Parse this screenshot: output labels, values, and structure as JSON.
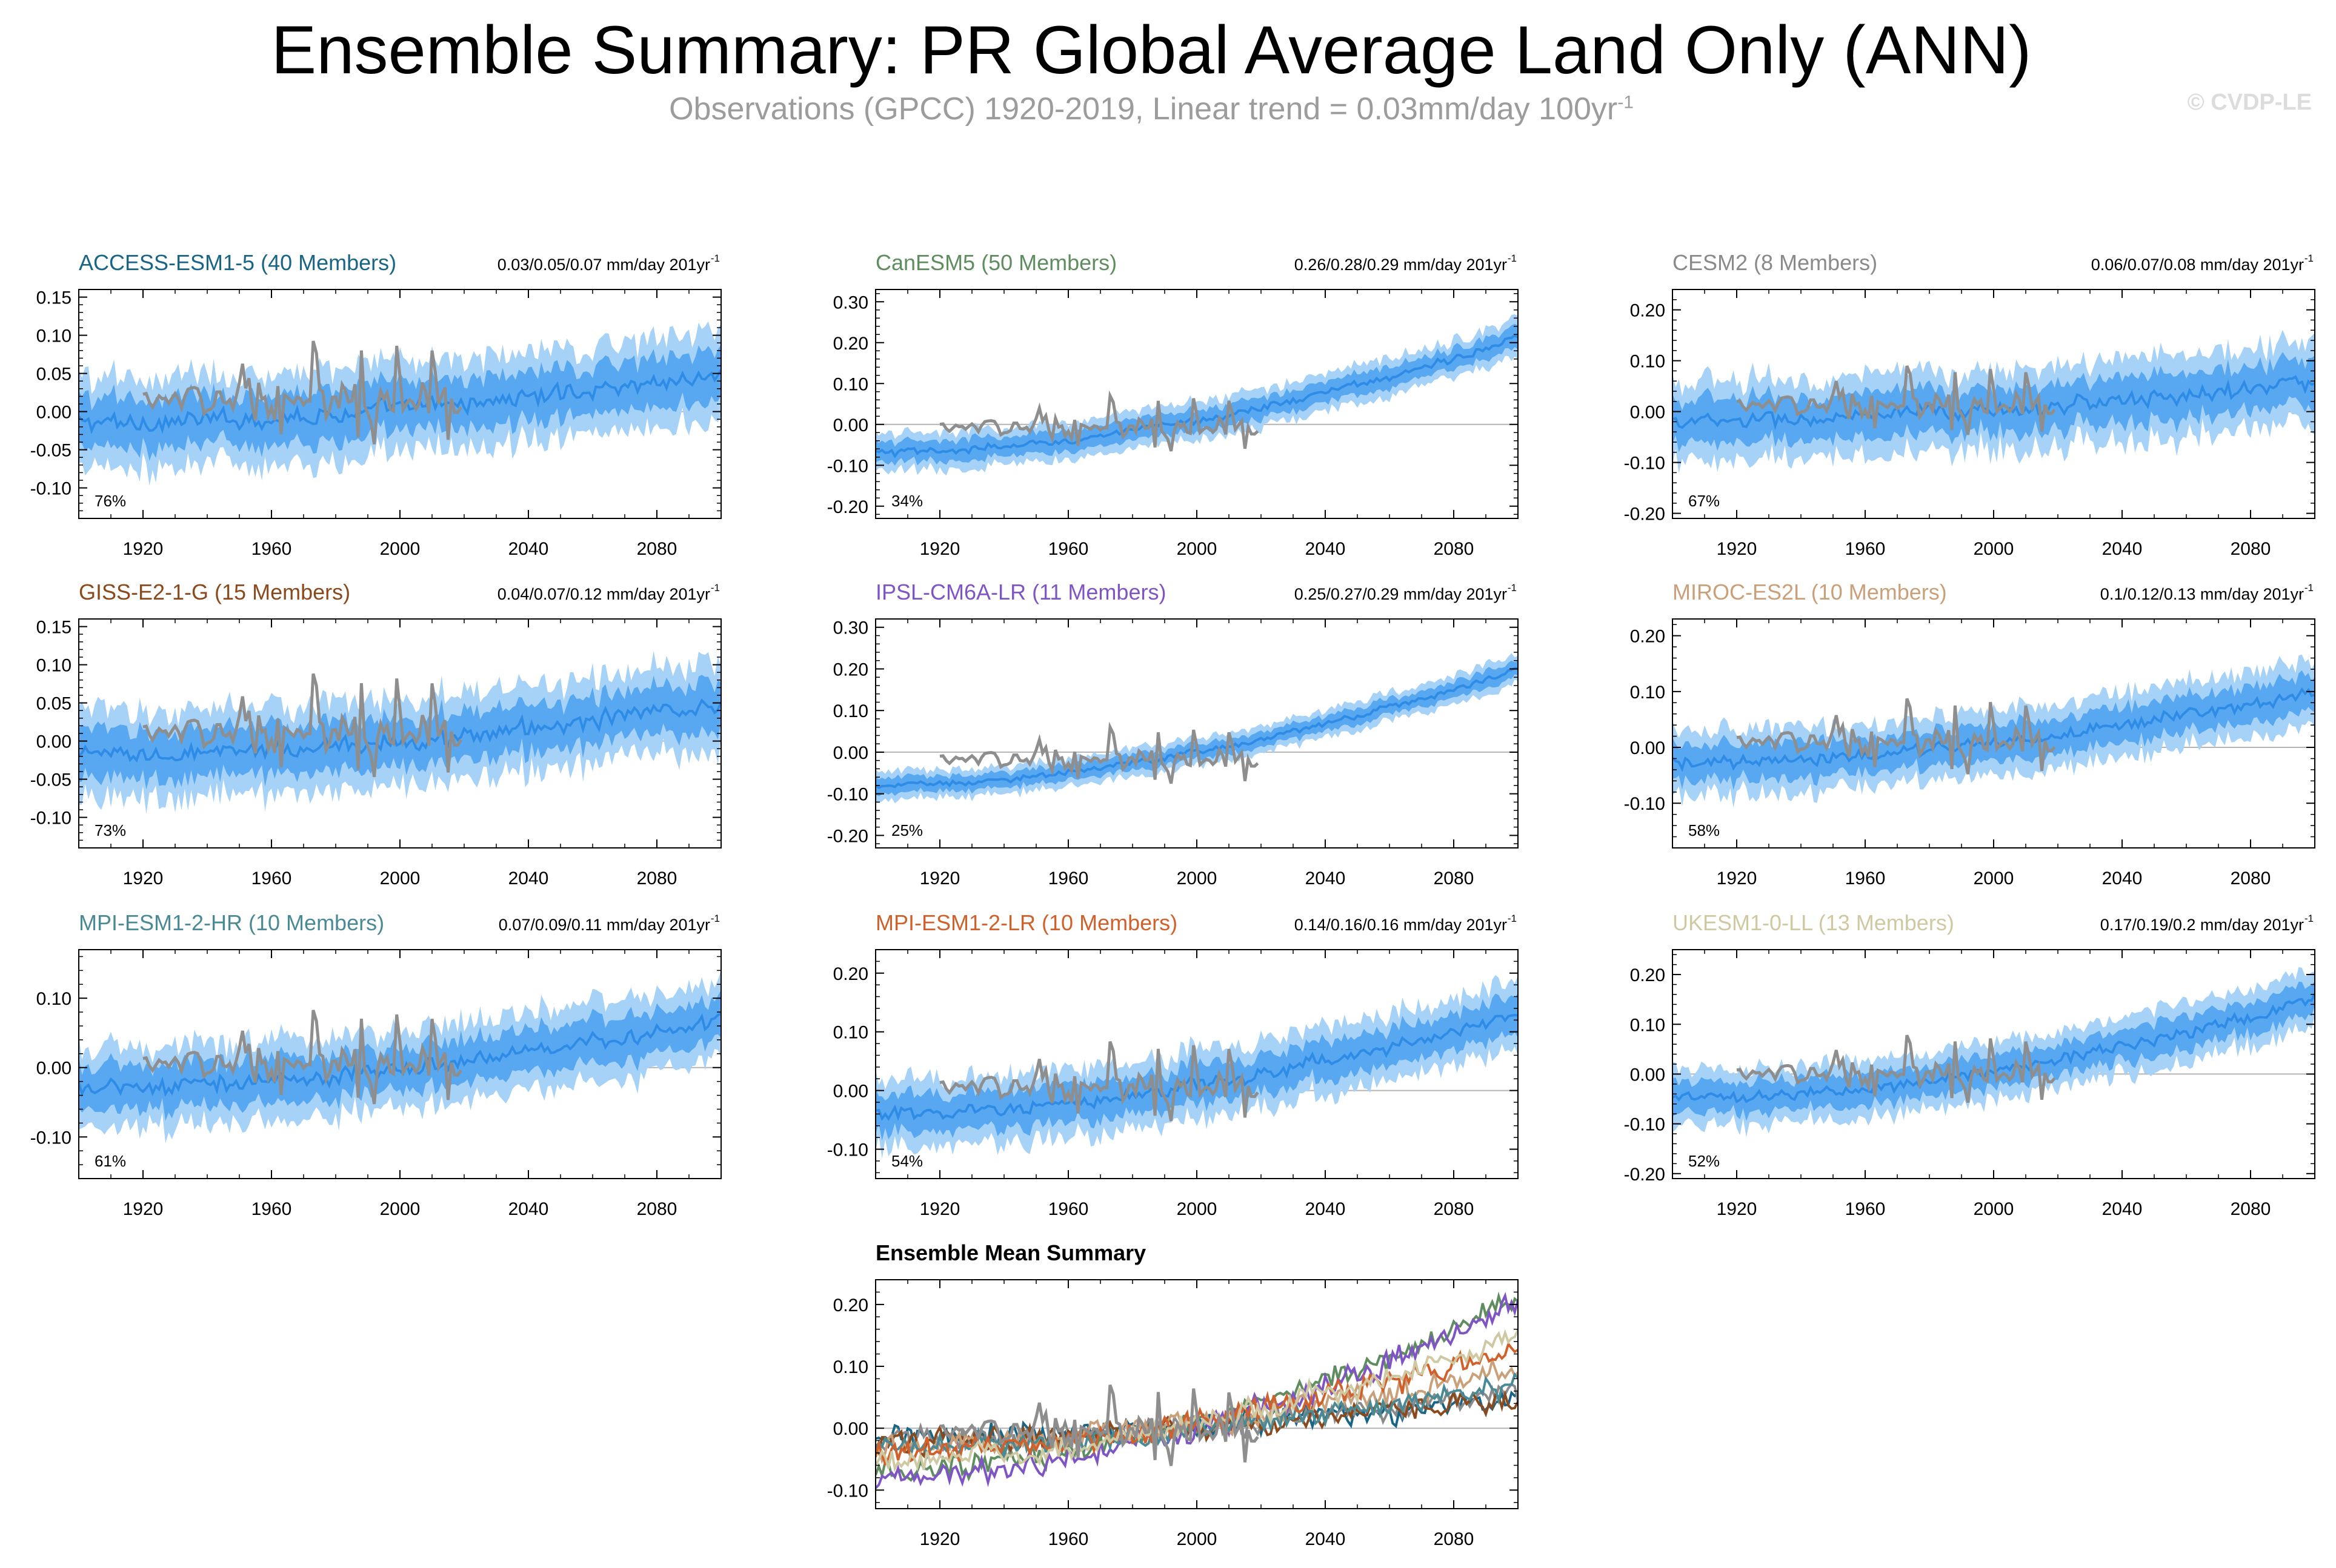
{
  "header": {
    "title": "Ensemble Summary: PR Global Average Land Only (ANN)",
    "subtitle_main": "Observations (GPCC) 1920-2019, Linear trend = 0.03mm/day 100yr",
    "subtitle_sup": "-1",
    "watermark": "© CVDP-LE"
  },
  "colors": {
    "observations": "#8e8e8e",
    "ensemble_mean": "#2f8ce6",
    "range_inner": "#57a8f0",
    "range_outer": "#a6d2f8"
  },
  "chart_data": [
    {
      "type": "line",
      "model": "ACCESS-ESM1-5",
      "title": "ACCESS-ESM1-5 (40 Members)",
      "title_color": "#1a6585",
      "trend": "0.03/0.05/0.07 mm/day 201yr",
      "trend_sup": "-1",
      "percent": "76%",
      "ylim": [
        -0.14,
        0.16
      ],
      "yticks": [
        -0.1,
        -0.05,
        0.0,
        0.05,
        0.1,
        0.15
      ],
      "yticklabels": [
        "-0.10",
        "-0.05",
        "0.00",
        "0.05",
        "0.10",
        "0.15"
      ],
      "xlim": [
        1900,
        2100
      ],
      "xticks": [
        1920,
        1960,
        2000,
        2040,
        2080
      ],
      "xticklabels": [
        "1920",
        "1960",
        "2000",
        "2040",
        "2080"
      ],
      "mean_trend": [
        -0.015,
        0.05
      ],
      "spread": 0.05,
      "obs_amp": 0.04
    },
    {
      "type": "line",
      "model": "CanESM5",
      "title": "CanESM5 (50 Members)",
      "title_color": "#5f8d5f",
      "trend": "0.26/0.28/0.29 mm/day 201yr",
      "trend_sup": "-1",
      "percent": "34%",
      "ylim": [
        -0.23,
        0.33
      ],
      "yticks": [
        -0.2,
        -0.1,
        0.0,
        0.1,
        0.2,
        0.3
      ],
      "yticklabels": [
        "-0.20",
        "-0.10",
        "0.00",
        "0.10",
        "0.20",
        "0.30"
      ],
      "xlim": [
        1900,
        2100
      ],
      "xticks": [
        1920,
        1960,
        2000,
        2040,
        2080
      ],
      "xticklabels": [
        "1920",
        "1960",
        "2000",
        "2040",
        "2080"
      ],
      "mean_trend": [
        -0.07,
        0.21
      ],
      "spread": 0.04,
      "obs_amp": 0.04
    },
    {
      "type": "line",
      "model": "CESM2",
      "title": "CESM2 (8 Members)",
      "title_color": "#8a8a8a",
      "trend": "0.06/0.07/0.08 mm/day 201yr",
      "trend_sup": "-1",
      "percent": "67%",
      "ylim": [
        -0.21,
        0.24
      ],
      "yticks": [
        -0.2,
        -0.1,
        0.0,
        0.1,
        0.2
      ],
      "yticklabels": [
        "-0.20",
        "-0.10",
        "0.00",
        "0.10",
        "0.20"
      ],
      "xlim": [
        1900,
        2100
      ],
      "xticks": [
        1920,
        1960,
        2000,
        2040,
        2080
      ],
      "xticklabels": [
        "1920",
        "1960",
        "2000",
        "2040",
        "2080"
      ],
      "mean_trend": [
        -0.02,
        0.06
      ],
      "spread": 0.07,
      "obs_amp": 0.04
    },
    {
      "type": "line",
      "model": "GISS-E2-1-G",
      "title": "GISS-E2-1-G (15 Members)",
      "title_color": "#8a4a1e",
      "trend": "0.04/0.07/0.12 mm/day 201yr",
      "trend_sup": "-1",
      "percent": "73%",
      "ylim": [
        -0.14,
        0.16
      ],
      "yticks": [
        -0.1,
        -0.05,
        0.0,
        0.05,
        0.1,
        0.15
      ],
      "yticklabels": [
        "-0.10",
        "-0.05",
        "0.00",
        "0.05",
        "0.10",
        "0.15"
      ],
      "xlim": [
        1900,
        2100
      ],
      "xticks": [
        1920,
        1960,
        2000,
        2040,
        2080
      ],
      "xticklabels": [
        "1920",
        "1960",
        "2000",
        "2040",
        "2080"
      ],
      "mean_trend": [
        -0.02,
        0.05
      ],
      "spread": 0.05,
      "obs_amp": 0.04
    },
    {
      "type": "line",
      "model": "IPSL-CM6A-LR",
      "title": "IPSL-CM6A-LR (11 Members)",
      "title_color": "#7f55c4",
      "trend": "0.25/0.27/0.29 mm/day 201yr",
      "trend_sup": "-1",
      "percent": "25%",
      "ylim": [
        -0.23,
        0.32
      ],
      "yticks": [
        -0.2,
        -0.1,
        0.0,
        0.1,
        0.2,
        0.3
      ],
      "yticklabels": [
        "-0.20",
        "-0.10",
        "0.00",
        "0.10",
        "0.20",
        "0.30"
      ],
      "xlim": [
        1900,
        2100
      ],
      "xticks": [
        1920,
        1960,
        2000,
        2040,
        2080
      ],
      "xticklabels": [
        "1920",
        "1960",
        "2000",
        "2040",
        "2080"
      ],
      "mean_trend": [
        -0.08,
        0.2
      ],
      "spread": 0.03,
      "obs_amp": 0.04
    },
    {
      "type": "line",
      "model": "MIROC-ES2L",
      "title": "MIROC-ES2L (10 Members)",
      "title_color": "#c9a07a",
      "trend": "0.1/0.12/0.13 mm/day 201yr",
      "trend_sup": "-1",
      "percent": "58%",
      "ylim": [
        -0.18,
        0.23
      ],
      "yticks": [
        -0.1,
        0.0,
        0.1,
        0.2
      ],
      "yticklabels": [
        "-0.10",
        "0.00",
        "0.10",
        "0.20"
      ],
      "xlim": [
        1900,
        2100
      ],
      "xticks": [
        1920,
        1960,
        2000,
        2040,
        2080
      ],
      "xticklabels": [
        "1920",
        "1960",
        "2000",
        "2040",
        "2080"
      ],
      "mean_trend": [
        -0.03,
        0.1
      ],
      "spread": 0.05,
      "obs_amp": 0.04
    },
    {
      "type": "line",
      "model": "MPI-ESM1-2-HR",
      "title": "MPI-ESM1-2-HR (10 Members)",
      "title_color": "#4a8a95",
      "trend": "0.07/0.09/0.11 mm/day 201yr",
      "trend_sup": "-1",
      "percent": "61%",
      "ylim": [
        -0.16,
        0.17
      ],
      "yticks": [
        -0.1,
        0.0,
        0.1
      ],
      "yticklabels": [
        "-0.10",
        "0.00",
        "0.10"
      ],
      "xlim": [
        1900,
        2100
      ],
      "xticks": [
        1920,
        1960,
        2000,
        2040,
        2080
      ],
      "xticklabels": [
        "1920",
        "1960",
        "2000",
        "2040",
        "2080"
      ],
      "mean_trend": [
        -0.03,
        0.07
      ],
      "spread": 0.05,
      "obs_amp": 0.04
    },
    {
      "type": "line",
      "model": "MPI-ESM1-2-LR",
      "title": "MPI-ESM1-2-LR (10 Members)",
      "title_color": "#d0612c",
      "trend": "0.14/0.16/0.16 mm/day 201yr",
      "trend_sup": "-1",
      "percent": "54%",
      "ylim": [
        -0.15,
        0.24
      ],
      "yticks": [
        -0.1,
        0.0,
        0.1,
        0.2
      ],
      "yticklabels": [
        "-0.10",
        "0.00",
        "0.10",
        "0.20"
      ],
      "xlim": [
        1900,
        2100
      ],
      "xticks": [
        1920,
        1960,
        2000,
        2040,
        2080
      ],
      "xticklabels": [
        "1920",
        "1960",
        "2000",
        "2040",
        "2080"
      ],
      "mean_trend": [
        -0.04,
        0.13
      ],
      "spread": 0.05,
      "obs_amp": 0.04
    },
    {
      "type": "line",
      "model": "UKESM1-0-LL",
      "title": "UKESM1-0-LL (13 Members)",
      "title_color": "#cfc9a3",
      "trend": "0.17/0.19/0.2 mm/day 201yr",
      "trend_sup": "-1",
      "percent": "52%",
      "ylim": [
        -0.21,
        0.25
      ],
      "yticks": [
        -0.2,
        -0.1,
        0.0,
        0.1,
        0.2
      ],
      "yticklabels": [
        "-0.20",
        "-0.10",
        "0.00",
        "0.10",
        "0.20"
      ],
      "xlim": [
        1900,
        2100
      ],
      "xticks": [
        1920,
        1960,
        2000,
        2040,
        2080
      ],
      "xticklabels": [
        "1920",
        "1960",
        "2000",
        "2040",
        "2080"
      ],
      "mean_trend": [
        -0.05,
        0.15
      ],
      "spread": 0.05,
      "obs_amp": 0.04
    },
    {
      "type": "line",
      "model": "Ensemble Mean Summary",
      "title": "Ensemble Mean Summary",
      "title_color": "#000000",
      "ylim": [
        -0.13,
        0.24
      ],
      "yticks": [
        -0.1,
        0.0,
        0.1,
        0.2
      ],
      "yticklabels": [
        "-0.10",
        "0.00",
        "0.10",
        "0.20"
      ],
      "xlim": [
        1900,
        2100
      ],
      "xticks": [
        1920,
        1960,
        2000,
        2040,
        2080
      ],
      "xticklabels": [
        "1920",
        "1960",
        "2000",
        "2040",
        "2080"
      ],
      "summary": true
    }
  ]
}
